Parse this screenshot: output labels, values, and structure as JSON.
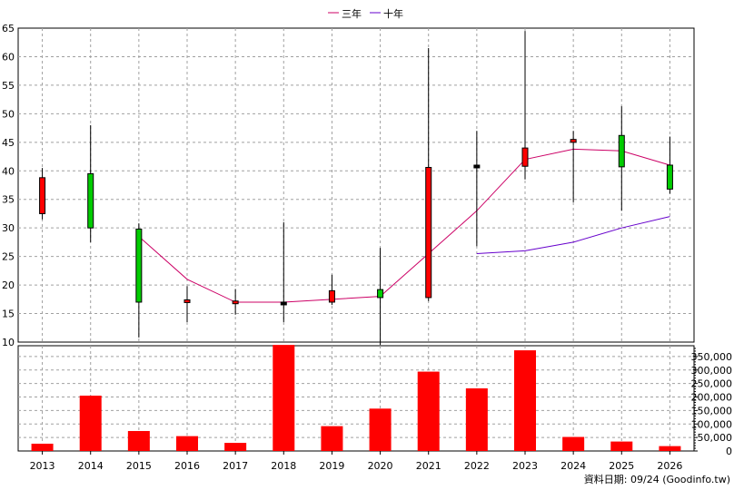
{
  "legend": [
    {
      "label": "三年",
      "color": "#cc0066"
    },
    {
      "label": "十年",
      "color": "#6600cc"
    }
  ],
  "footer": "資料日期: 09/24  (Goodinfo.tw)",
  "colors": {
    "up": "#ff0000",
    "down": "#00cc00",
    "volume": "#ff0000",
    "grid": "#a0a0a0"
  },
  "chart_data": [
    {
      "type": "candlestick",
      "title": "",
      "categories": [
        "2013",
        "2014",
        "2015",
        "2016",
        "2017",
        "2018",
        "2019",
        "2020",
        "2021",
        "2022",
        "2023",
        "2024",
        "2025",
        "2026"
      ],
      "ylim": [
        10,
        65
      ],
      "yticks": [
        10,
        15,
        20,
        25,
        30,
        35,
        40,
        45,
        50,
        55,
        60,
        65
      ],
      "grid": true,
      "legend_position": "top-center",
      "candles": [
        {
          "x": "2013",
          "open": 32.5,
          "close": 38.8,
          "high": 40.5,
          "low": 31.5
        },
        {
          "x": "2014",
          "open": 39.5,
          "close": 30.0,
          "high": 48.0,
          "low": 27.5
        },
        {
          "x": "2015",
          "open": 29.8,
          "close": 17.0,
          "high": 30.8,
          "low": 10.8
        },
        {
          "x": "2016",
          "open": 17.0,
          "close": 17.4,
          "high": 19.8,
          "low": 13.5
        },
        {
          "x": "2017",
          "open": 16.8,
          "close": 17.2,
          "high": 19.3,
          "low": 14.8
        },
        {
          "x": "2018",
          "open": 17.0,
          "close": 17.0,
          "high": 31.0,
          "low": 13.5
        },
        {
          "x": "2019",
          "open": 17.0,
          "close": 19.0,
          "high": 21.8,
          "low": 16.5
        },
        {
          "x": "2020",
          "open": 19.2,
          "close": 17.8,
          "high": 26.5,
          "low": 9.5
        },
        {
          "x": "2021",
          "open": 17.8,
          "close": 40.6,
          "high": 61.5,
          "low": 17.2
        },
        {
          "x": "2022",
          "open": 41.0,
          "close": 41.0,
          "high": 47.0,
          "low": 26.8
        },
        {
          "x": "2023",
          "open": 40.8,
          "close": 44.0,
          "high": 64.5,
          "low": 38.5
        },
        {
          "x": "2024",
          "open": 45.0,
          "close": 45.5,
          "high": 47.0,
          "low": 34.5
        },
        {
          "x": "2025",
          "open": 46.2,
          "close": 40.7,
          "high": 51.3,
          "low": 33.0
        },
        {
          "x": "2026",
          "open": 41.0,
          "close": 36.8,
          "high": 46.0,
          "low": 36.0
        }
      ],
      "series": [
        {
          "name": "三年",
          "x": [
            "2015",
            "2016",
            "2017",
            "2018",
            "2019",
            "2020",
            "2021",
            "2022",
            "2023",
            "2024",
            "2025",
            "2026"
          ],
          "values": [
            28.5,
            21.0,
            17.0,
            17.0,
            17.5,
            18.0,
            25.5,
            33.0,
            42.0,
            43.8,
            43.5,
            41.0
          ]
        },
        {
          "name": "十年",
          "x": [
            "2022",
            "2023",
            "2024",
            "2025",
            "2026"
          ],
          "values": [
            25.5,
            26.0,
            27.5,
            30.0,
            32.0
          ]
        }
      ]
    },
    {
      "type": "bar",
      "title": "",
      "categories": [
        "2013",
        "2014",
        "2015",
        "2016",
        "2017",
        "2018",
        "2019",
        "2020",
        "2021",
        "2022",
        "2023",
        "2024",
        "2025",
        "2026"
      ],
      "values": [
        27000,
        205000,
        74000,
        55000,
        30000,
        393000,
        92000,
        157000,
        294000,
        232000,
        373000,
        52000,
        35000,
        18000
      ],
      "ylim": [
        0,
        390000
      ],
      "yticks": [
        0,
        50000,
        100000,
        150000,
        200000,
        250000,
        300000,
        350000
      ],
      "ytick_labels": [
        "0",
        "50,000",
        "100,000",
        "150,000",
        "200,000",
        "250,000",
        "300,000",
        "350,000"
      ],
      "xlabels": [
        "2013",
        "2014",
        "2015",
        "2016",
        "2017",
        "2018",
        "2019",
        "2020",
        "2021",
        "2022",
        "2023",
        "2024",
        "2025",
        "2026"
      ]
    }
  ]
}
